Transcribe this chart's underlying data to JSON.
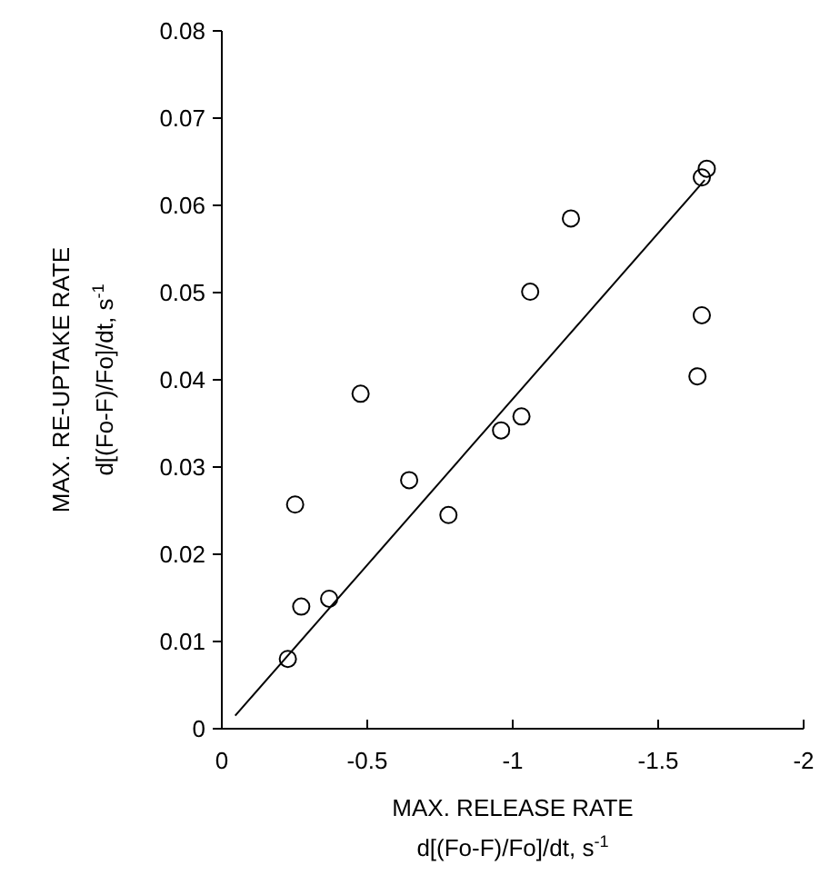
{
  "chart_data": {
    "type": "scatter",
    "xlabel": "MAX. RELEASE RATE\nd[(Fo-F)/Fo]/dt, s$^{-1}$",
    "ylabel": "MAX. RE-UPTAKE RATE\nd[(Fo-F)/Fo]/dt, s$^{-1}$",
    "xlim": [
      0,
      -2
    ],
    "xticks": [
      0,
      -0.5,
      -1,
      -1.5,
      -2
    ],
    "ylim": [
      0,
      0.08
    ],
    "yticks": [
      0,
      0.01,
      0.02,
      0.03,
      0.04,
      0.05,
      0.06,
      0.07,
      0.08
    ],
    "marker": "circle",
    "grid": false,
    "series": [
      {
        "color": "#000000",
        "x": [
          -1.667,
          -1.65,
          -1.2,
          -1.06,
          -1.65,
          -1.635,
          -0.477,
          -1.03,
          -0.96,
          -0.644,
          -0.252,
          -0.779,
          -0.369,
          -0.273,
          -0.227
        ],
        "values": [
          0.0642,
          0.0632,
          0.0585,
          0.0501,
          0.0474,
          0.0404,
          0.0384,
          0.0358,
          0.0342,
          0.0285,
          0.0257,
          0.0245,
          0.0149,
          0.014,
          0.008
        ]
      },
      {
        "type": "line",
        "color": "#000000",
        "marker": "none",
        "x": [
          -0.046,
          -1.66
        ],
        "values": [
          0.0015,
          0.0629
        ]
      }
    ]
  }
}
